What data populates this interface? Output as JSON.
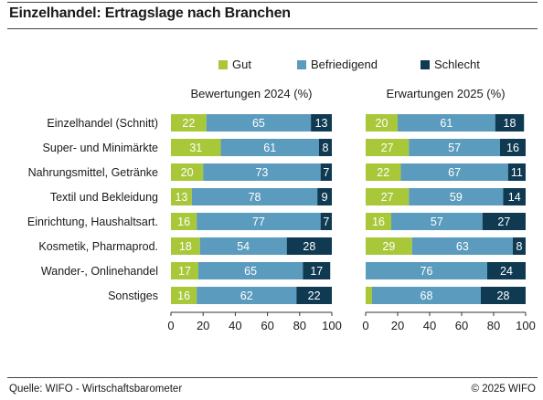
{
  "title": "Einzelhandel: Ertragslage nach Branchen",
  "footer": {
    "source": "Quelle: WIFO - Wirtschaftsbarometer",
    "copyright": "© 2025 WIFO"
  },
  "colors": {
    "gut": "#a8c83a",
    "befriedigend": "#5b9bbd",
    "schlecht": "#0f3a52"
  },
  "chart_data": [
    {
      "type": "bar",
      "orientation": "horizontal",
      "stacked": true,
      "title": "Bewertungen 2024 (%)",
      "categories": [
        "Einzelhandel (Schnitt)",
        "Super- und Minimärkte",
        "Nahrungsmittel, Getränke",
        "Textil und Bekleidung",
        "Einrichtung, Haushaltsart.",
        "Kosmetik, Pharmaprod.",
        "Wander-, Onlinehandel",
        "Sonstiges"
      ],
      "series": [
        {
          "name": "Gut",
          "values": [
            22,
            31,
            20,
            13,
            16,
            18,
            17,
            16
          ],
          "labels": [
            "22",
            "31",
            "20",
            "13",
            "16",
            "18",
            "17",
            "16"
          ]
        },
        {
          "name": "Befriedigend",
          "values": [
            65,
            61,
            73,
            78,
            77,
            54,
            65,
            62
          ],
          "labels": [
            "65",
            "61",
            "73",
            "78",
            "77",
            "54",
            "65",
            "62"
          ]
        },
        {
          "name": "Schlecht",
          "values": [
            13,
            8,
            7,
            9,
            7,
            28,
            17,
            22
          ],
          "labels": [
            "13",
            "8",
            "7",
            "9",
            "7",
            "28",
            "17",
            "22"
          ]
        }
      ],
      "xlim": [
        0,
        100
      ],
      "ticks": [
        "0",
        "20",
        "40",
        "60",
        "80",
        "100"
      ],
      "legend": "top"
    },
    {
      "type": "bar",
      "orientation": "horizontal",
      "stacked": true,
      "title": "Erwartungen 2025 (%)",
      "categories": [
        "Einzelhandel (Schnitt)",
        "Super- und Minimärkte",
        "Nahrungsmittel, Getränke",
        "Textil und Bekleidung",
        "Einrichtung, Haushaltsart.",
        "Kosmetik, Pharmaprod.",
        "Wander-, Onlinehandel",
        "Sonstiges"
      ],
      "series": [
        {
          "name": "Gut",
          "values": [
            20,
            27,
            22,
            27,
            16,
            29,
            0,
            4
          ],
          "labels": [
            "20",
            "27",
            "22",
            "27",
            "16",
            "29",
            "",
            ""
          ]
        },
        {
          "name": "Befriedigend",
          "values": [
            61,
            57,
            67,
            59,
            57,
            63,
            76,
            68
          ],
          "labels": [
            "61",
            "57",
            "67",
            "59",
            "57",
            "63",
            "76",
            "68"
          ]
        },
        {
          "name": "Schlecht",
          "values": [
            18,
            16,
            11,
            14,
            27,
            8,
            24,
            28
          ],
          "labels": [
            "18",
            "16",
            "11",
            "14",
            "27",
            "8",
            "24",
            "28"
          ]
        }
      ],
      "xlim": [
        0,
        100
      ],
      "ticks": [
        "0",
        "20",
        "40",
        "60",
        "80",
        "100"
      ],
      "legend": "top"
    }
  ]
}
